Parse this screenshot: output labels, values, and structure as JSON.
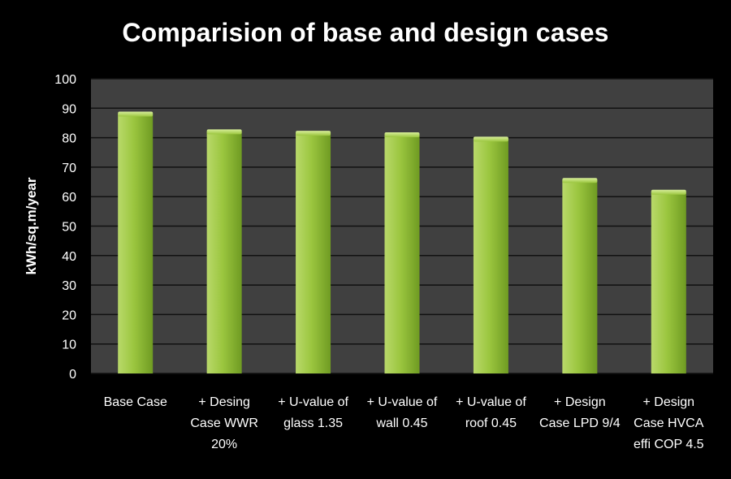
{
  "chart_data": {
    "type": "bar",
    "title": "Comparision of base and design cases",
    "xlabel": "",
    "ylabel": "kWh/sq.m/year",
    "ylim": [
      0,
      100
    ],
    "yticks": [
      0,
      10,
      20,
      30,
      40,
      50,
      60,
      70,
      80,
      90,
      100
    ],
    "grid": true,
    "legend": "none",
    "categories": [
      [
        "Base Case"
      ],
      [
        "+ Desing",
        "Case WWR",
        "20%"
      ],
      [
        "+ U-value of",
        "glass 1.35"
      ],
      [
        "+ U-value of",
        "wall 0.45"
      ],
      [
        "+ U-value of",
        "roof 0.45"
      ],
      [
        "+ Design",
        "Case LPD 9/4"
      ],
      [
        "+ Design",
        "Case HVCA",
        "effi COP 4.5"
      ]
    ],
    "values": [
      88,
      82,
      81.5,
      81,
      79.5,
      65.5,
      61.5
    ],
    "colors": {
      "background": "#000000",
      "plot_area": "#404040",
      "grid": "#111111",
      "bar_top": "#b9d96a",
      "bar_mid": "#9bc63f",
      "bar_dark": "#6f9b22",
      "text": "#ffffff"
    }
  }
}
